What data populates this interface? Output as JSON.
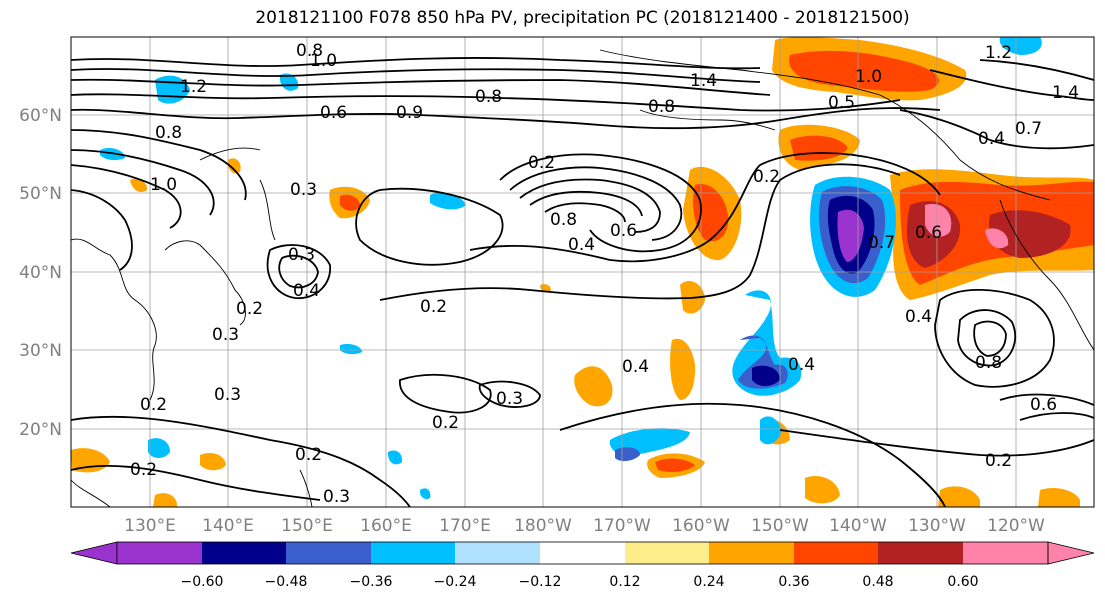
{
  "title": "2018121100 F078 850 hPa PV, precipitation PC (2018121400 - 2018121500)",
  "map": {
    "projection": "cylindrical",
    "lon_range": [
      120,
      250
    ],
    "lat_range": [
      10,
      70
    ],
    "lat_labels": [
      "20°N",
      "30°N",
      "40°N",
      "50°N",
      "60°N"
    ],
    "lon_labels": [
      "130°E",
      "140°E",
      "150°E",
      "160°E",
      "170°E",
      "180°W",
      "170°W",
      "160°W",
      "150°W",
      "140°W",
      "130°W",
      "120°W"
    ],
    "grid": true,
    "tick_label_color": "#808080"
  },
  "contour_labels": [
    {
      "text": "0.8"
    },
    {
      "text": "1.0"
    },
    {
      "text": "1.2"
    },
    {
      "text": "1.0"
    },
    {
      "text": "0.8"
    },
    {
      "text": "0.8"
    },
    {
      "text": "0.6"
    },
    {
      "text": "0.9"
    },
    {
      "text": "0.3"
    },
    {
      "text": "0.3"
    },
    {
      "text": "0.4"
    },
    {
      "text": "0.2"
    },
    {
      "text": "0.3"
    },
    {
      "text": "0.2"
    },
    {
      "text": "0.2"
    },
    {
      "text": "0.2"
    },
    {
      "text": "0.3"
    },
    {
      "text": "0.2"
    },
    {
      "text": "0.3"
    },
    {
      "text": "0.2"
    },
    {
      "text": "0.3"
    },
    {
      "text": "0.4"
    },
    {
      "text": "0.6"
    },
    {
      "text": "0.8"
    },
    {
      "text": "0.2"
    },
    {
      "text": "0.4"
    },
    {
      "text": "0.4"
    },
    {
      "text": "0.2"
    },
    {
      "text": "0.7"
    },
    {
      "text": "0.6"
    },
    {
      "text": "0.4"
    },
    {
      "text": "0.8"
    },
    {
      "text": "0.6"
    },
    {
      "text": "0.5"
    },
    {
      "text": "0.4"
    },
    {
      "text": "0.2"
    },
    {
      "text": "1.2"
    },
    {
      "text": "1.4"
    },
    {
      "text": "0.7"
    },
    {
      "text": "1.0"
    },
    {
      "text": "1.4"
    },
    {
      "text": "0.8"
    }
  ],
  "colorbar": {
    "ticks": [
      "−0.60",
      "−0.48",
      "−0.36",
      "−0.24",
      "−0.12",
      "0.12",
      "0.24",
      "0.36",
      "0.48",
      "0.60"
    ],
    "colors": [
      "#9a32cd",
      "#00008b",
      "#3a5fcd",
      "#00bfff",
      "#b0e2ff",
      "#ffffff",
      "#ffec8b",
      "#ffa500",
      "#ff4500",
      "#b22222",
      "#ff82ab"
    ]
  }
}
